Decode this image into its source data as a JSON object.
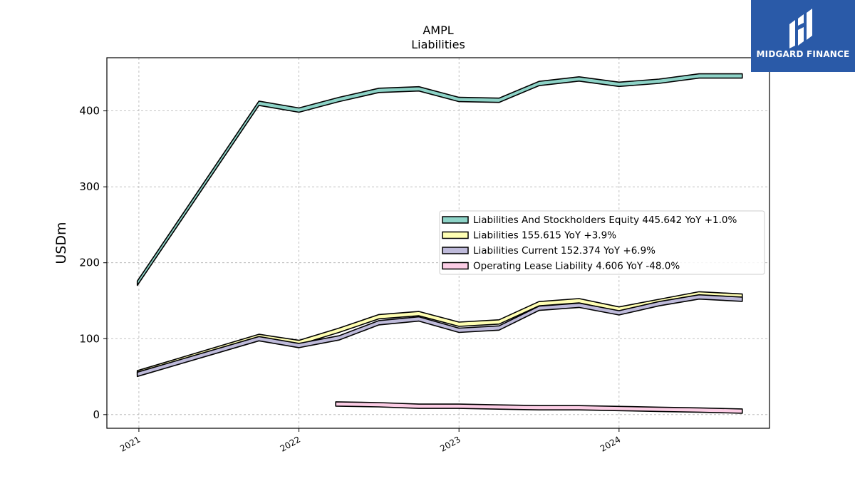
{
  "logo": {
    "text": "MIDGARD FINANCE"
  },
  "chart_data": {
    "type": "area",
    "title": "AMPL",
    "subtitle": "Liabilities",
    "ylabel": "USDm",
    "xlabel": "",
    "ylim": [
      -18,
      470
    ],
    "xlim": [
      2020.8,
      2024.94
    ],
    "yticks": [
      0,
      100,
      200,
      300,
      400
    ],
    "xticks": [
      {
        "value": 2021,
        "label": "2021"
      },
      {
        "value": 2022,
        "label": "2022"
      },
      {
        "value": 2023,
        "label": "2023"
      },
      {
        "value": 2024,
        "label": "2024"
      }
    ],
    "grid": true,
    "legend_position": "center-right",
    "series": [
      {
        "name": "Liabilities And Stockholders Equity",
        "legend": "Liabilities And Stockholders Equity  445.642 YoY +1.0%",
        "color": "#8dd3c7",
        "x": [
          2020.99,
          2021.75,
          2022.0,
          2022.25,
          2022.5,
          2022.75,
          2023.0,
          2023.25,
          2023.5,
          2023.75,
          2024.0,
          2024.25,
          2024.5,
          2024.77
        ],
        "values": [
          173,
          410,
          401,
          415,
          427,
          429,
          415,
          414,
          436,
          442,
          435,
          439,
          446,
          446
        ]
      },
      {
        "name": "Liabilities",
        "legend": "Liabilities  155.615 YoY +3.9%",
        "color": "#ffffb3",
        "x": [
          2020.99,
          2021.75,
          2022.0,
          2022.25,
          2022.5,
          2022.75,
          2023.0,
          2023.25,
          2023.5,
          2023.75,
          2024.0,
          2024.25,
          2024.5,
          2024.77
        ],
        "values": [
          55,
          103,
          95,
          111,
          129,
          133,
          119,
          122,
          146,
          150,
          139,
          149,
          159,
          156
        ]
      },
      {
        "name": "Liabilities Current",
        "legend": "Liabilities Current  152.374 YoY +6.9%",
        "color": "#bebada",
        "x": [
          2020.99,
          2021.75,
          2022.0,
          2022.25,
          2022.5,
          2022.75,
          2023.0,
          2023.25,
          2023.5,
          2023.75,
          2024.0,
          2024.25,
          2024.5,
          2024.77
        ],
        "values": [
          53,
          100,
          91,
          101,
          121,
          126,
          111,
          114,
          140,
          144,
          134,
          146,
          155,
          152
        ]
      },
      {
        "name": "Operating Lease Liability",
        "legend": "Operating Lease Liability  4.606 YoY -48.0%",
        "color": "#fccde5",
        "x": [
          2022.23,
          2022.5,
          2022.75,
          2023.0,
          2023.25,
          2023.5,
          2023.75,
          2024.0,
          2024.25,
          2024.5,
          2024.77
        ],
        "values": [
          14,
          13,
          11,
          11,
          10,
          9,
          9,
          8,
          7,
          6,
          4.6
        ]
      }
    ]
  }
}
